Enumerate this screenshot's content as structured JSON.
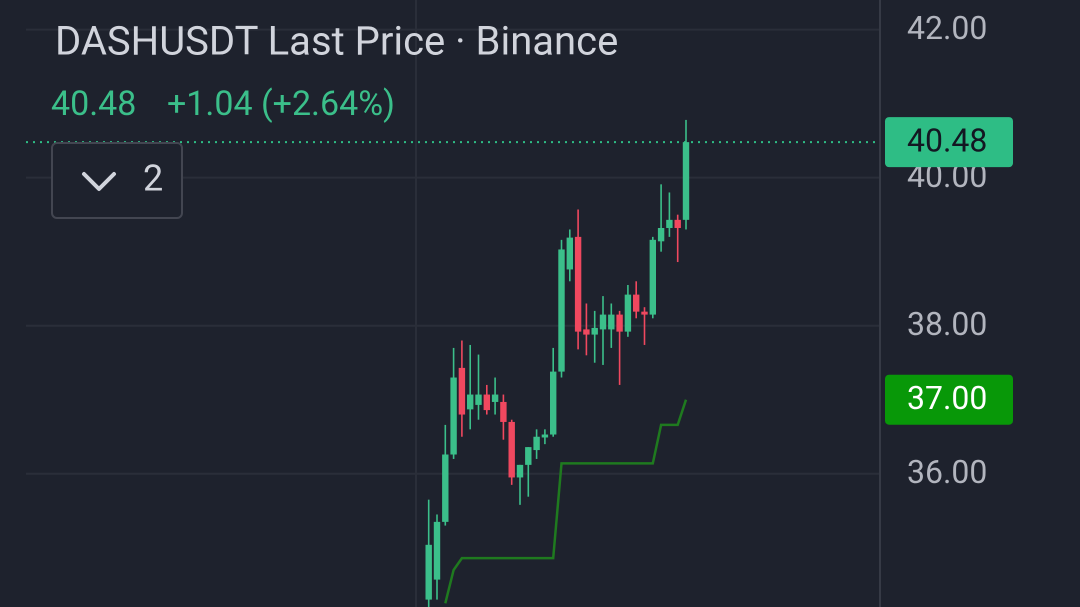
{
  "header": {
    "title": "DASHUSDT Last Price · Binance",
    "price": "40.48",
    "change": "+1.04 (+2.64%)",
    "collapse_count": "2"
  },
  "chart_data": {
    "type": "candlestick",
    "up_color": "#3bbf8a",
    "down_color": "#f0485f",
    "open": [
      34.3,
      34.57,
      35.35,
      36.26,
      37.43,
      36.87,
      36.93,
      37.07,
      36.97,
      36.97,
      36.7,
      35.95,
      36.12,
      36.32,
      36.49,
      36.53,
      37.38,
      38.76,
      39.2,
      37.95,
      37.88,
      37.95,
      37.95,
      38.15,
      37.92,
      38.42,
      38.19,
      38.15,
      39.14,
      39.32,
      39.43,
      39.43
    ],
    "high": [
      35.65,
      35.45,
      36.66,
      37.7,
      37.8,
      37.74,
      37.61,
      37.2,
      37.3,
      37.07,
      36.73,
      36.12,
      36.36,
      36.6,
      36.6,
      37.7,
      39.16,
      39.3,
      39.57,
      38.3,
      38.2,
      38.4,
      38.3,
      38.2,
      38.55,
      38.6,
      38.25,
      39.2,
      39.91,
      39.8,
      39.5,
      40.78
    ],
    "low": [
      34.1,
      34.3,
      35.3,
      36.2,
      36.5,
      36.6,
      36.73,
      36.8,
      36.8,
      36.46,
      35.85,
      35.58,
      35.69,
      36.2,
      36.4,
      36.5,
      37.3,
      38.6,
      37.68,
      37.6,
      37.5,
      37.47,
      37.7,
      37.2,
      37.85,
      38.1,
      37.74,
      38.1,
      39.0,
      39.2,
      38.86,
      39.3
    ],
    "close": [
      35.04,
      35.35,
      36.26,
      37.3,
      36.8,
      37.07,
      37.07,
      36.86,
      37.07,
      36.7,
      35.95,
      36.12,
      36.36,
      36.5,
      36.53,
      37.38,
      39.03,
      39.19,
      37.92,
      37.88,
      37.97,
      38.15,
      38.15,
      37.92,
      38.42,
      38.19,
      38.15,
      39.16,
      39.32,
      39.43,
      39.32,
      40.48
    ],
    "indicator": {
      "color": "#1f7a1f",
      "values": [
        null,
        null,
        34.25,
        34.7,
        34.86,
        34.86,
        34.86,
        34.86,
        34.86,
        34.86,
        34.86,
        34.86,
        34.86,
        34.86,
        34.86,
        34.86,
        36.14,
        36.14,
        36.14,
        36.14,
        36.14,
        36.14,
        36.14,
        36.14,
        36.14,
        36.14,
        36.14,
        36.14,
        36.66,
        36.66,
        36.66,
        37
      ]
    },
    "ylim": [
      34.2,
      42.4
    ],
    "yticks": [
      {
        "value": 36,
        "label": "36.00"
      },
      {
        "value": 38,
        "label": "38.00"
      },
      {
        "value": 40,
        "label": "40.00"
      },
      {
        "value": 42,
        "label": "42.00"
      }
    ],
    "grid": true,
    "price_labels": [
      {
        "value": 40.48,
        "label": "40.48",
        "color": "#2ebd85",
        "text_color": "#131722"
      },
      {
        "value": 37,
        "label": "37.00",
        "color": "#089808",
        "text_color": "#ffffff"
      }
    ]
  }
}
